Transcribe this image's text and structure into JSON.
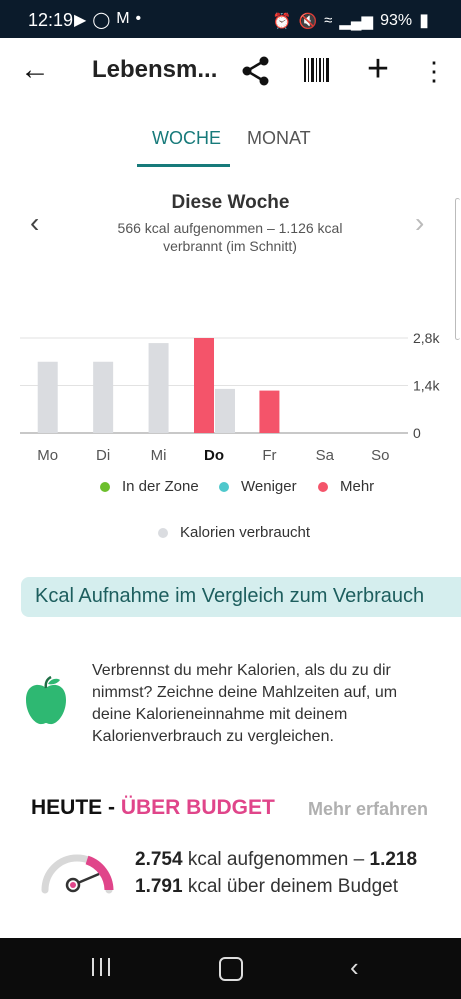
{
  "status_bar": {
    "time": "12:19",
    "battery": "93%",
    "icons_left": [
      "youtube-icon",
      "instagram-icon",
      "gmail-icon",
      "dot-icon"
    ],
    "icons_right": [
      "alarm-icon",
      "mute-icon",
      "wifi-icon",
      "signal-icon",
      "battery-icon"
    ]
  },
  "app_bar": {
    "title": "Lebensm...",
    "actions": [
      "share-icon",
      "barcode-icon",
      "add-icon",
      "more-icon"
    ]
  },
  "tabs": {
    "week": "WOCHE",
    "month": "MONAT",
    "active": "week",
    "accent": "#177a7a"
  },
  "summary": {
    "title": "Diese Woche",
    "subtitle": "566 kcal aufgenommen – 1.126 kcal verbrannt (im Schnitt)"
  },
  "chart_data": {
    "type": "bar",
    "categories": [
      "Mo",
      "Di",
      "Mi",
      "Do",
      "Fr",
      "Sa",
      "So"
    ],
    "highlight_category": "Do",
    "ylim": [
      0,
      2800
    ],
    "y_ticks": [
      "2,8k",
      "1,4k",
      "0"
    ],
    "series": [
      {
        "name": "Kalorien verbraucht",
        "color": "#dadce0",
        "values": [
          2100,
          2100,
          2650,
          1300,
          null,
          null,
          null
        ]
      },
      {
        "name": "Mehr",
        "color": "#f4546a",
        "values": [
          null,
          null,
          null,
          2800,
          1250,
          null,
          null
        ]
      }
    ],
    "legend": [
      {
        "label": "In der Zone",
        "color": "#6cbf2c"
      },
      {
        "label": "Weniger",
        "color": "#4fc8cc"
      },
      {
        "label": "Mehr",
        "color": "#f4546a"
      }
    ],
    "legend_secondary": {
      "label": "Kalorien verbraucht",
      "color": "#dadce0"
    }
  },
  "compare": {
    "label": "Kcal Aufnahme im Vergleich zum Verbrauch"
  },
  "info": {
    "text": "Verbrennst du mehr Kalorien, als du zu dir nimmst? Zeichne deine Mahlzeiten auf, um deine Kalorieneinnahme mit deinem Kalorienverbrauch zu vergleichen."
  },
  "today": {
    "prefix": "HEUTE - ",
    "status": "ÜBER BUDGET",
    "learn_more": "Mehr erfahren",
    "intake_value": "2.754",
    "intake_label": " kcal aufgenommen – ",
    "burned_value": "1.218",
    "over_value": "1.791",
    "over_label": " kcal über deinem Budget",
    "gauge_level": 0.85,
    "status_color": "#e0458a"
  },
  "nav_bar": {
    "items": [
      "recents-icon",
      "home-icon",
      "back-icon"
    ]
  }
}
